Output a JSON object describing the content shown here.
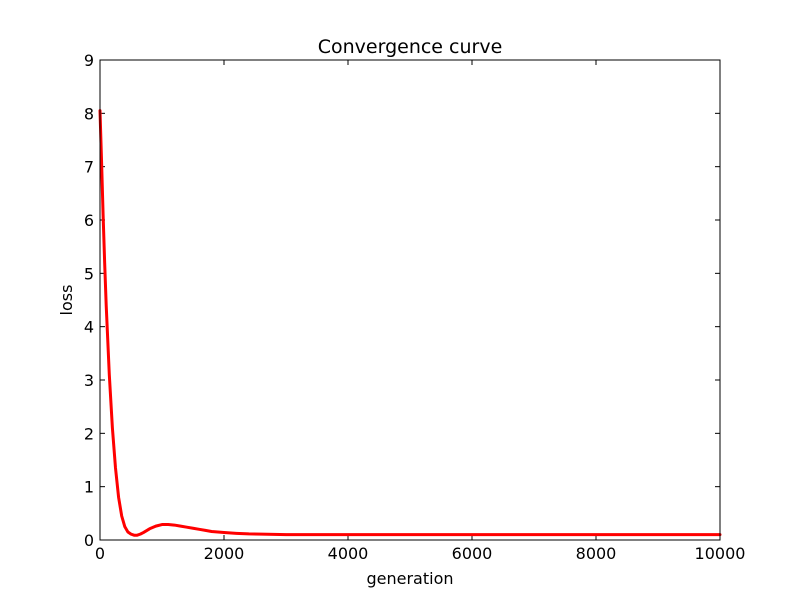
{
  "chart_data": {
    "type": "line",
    "title": "Convergence curve",
    "xlabel": "generation",
    "ylabel": "loss",
    "xlim": [
      0,
      10000
    ],
    "ylim": [
      0,
      9
    ],
    "xticks": [
      0,
      2000,
      4000,
      6000,
      8000,
      10000
    ],
    "yticks": [
      0,
      1,
      2,
      3,
      4,
      5,
      6,
      7,
      8,
      9
    ],
    "grid": false,
    "series": [
      {
        "color": "#ff0000",
        "x": [
          0,
          25,
          50,
          75,
          100,
          150,
          200,
          250,
          300,
          350,
          400,
          450,
          500,
          550,
          600,
          650,
          700,
          800,
          900,
          1000,
          1100,
          1200,
          1300,
          1400,
          1500,
          1600,
          1700,
          1800,
          1900,
          2000,
          2200,
          2400,
          2600,
          2800,
          3000,
          3500,
          4000,
          5000,
          6000,
          7000,
          8000,
          9000,
          10000
        ],
        "y": [
          8.05,
          7.1,
          6.1,
          5.2,
          4.4,
          3.1,
          2.1,
          1.35,
          0.8,
          0.45,
          0.25,
          0.15,
          0.11,
          0.09,
          0.09,
          0.11,
          0.14,
          0.21,
          0.26,
          0.29,
          0.29,
          0.28,
          0.26,
          0.24,
          0.22,
          0.2,
          0.18,
          0.16,
          0.15,
          0.14,
          0.125,
          0.115,
          0.11,
          0.105,
          0.1,
          0.1,
          0.1,
          0.1,
          0.1,
          0.1,
          0.1,
          0.1,
          0.1
        ]
      }
    ]
  }
}
